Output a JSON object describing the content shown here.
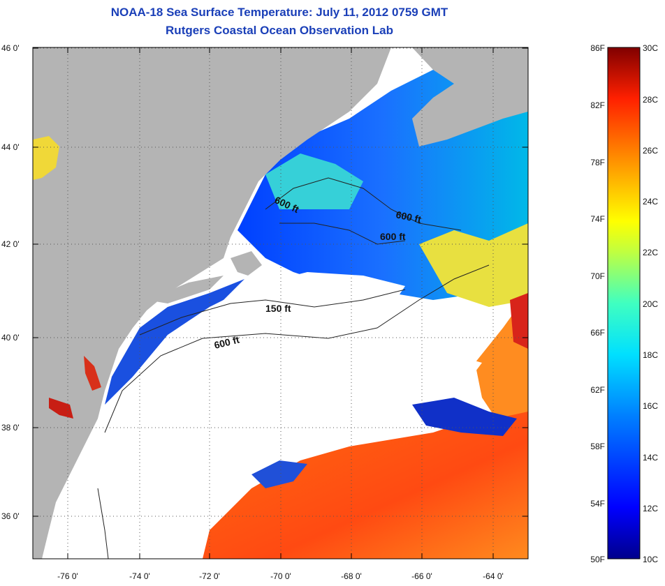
{
  "title": {
    "line1": "NOAA-18 Sea Surface Temperature:  July 11, 2012 0759 GMT",
    "line2": "Rutgers Coastal Ocean Observation Lab"
  },
  "map": {
    "lat_labels": [
      "46 0'",
      "44 0'",
      "42 0'",
      "40 0'",
      "38 0'",
      "36 0'"
    ],
    "lon_labels": [
      "-76 0'",
      "-74 0'",
      "-72 0'",
      "-70 0'",
      "-68 0'",
      "-66 0'",
      "-64 0'"
    ],
    "contour_labels": [
      "600 ft",
      "600 ft",
      "600 ft",
      "150 ft",
      "600 ft"
    ],
    "colors": {
      "land": "#b4b4b4",
      "cloud": "#ffffff",
      "grid": "#666666"
    }
  },
  "colorbar": {
    "fahrenheit_labels": [
      "86F",
      "82F",
      "78F",
      "74F",
      "70F",
      "66F",
      "62F",
      "58F",
      "54F",
      "50F"
    ],
    "celsius_labels": [
      "30C",
      "28C",
      "26C",
      "24C",
      "22C",
      "20C",
      "18C",
      "16C",
      "14C",
      "12C",
      "10C"
    ]
  }
}
